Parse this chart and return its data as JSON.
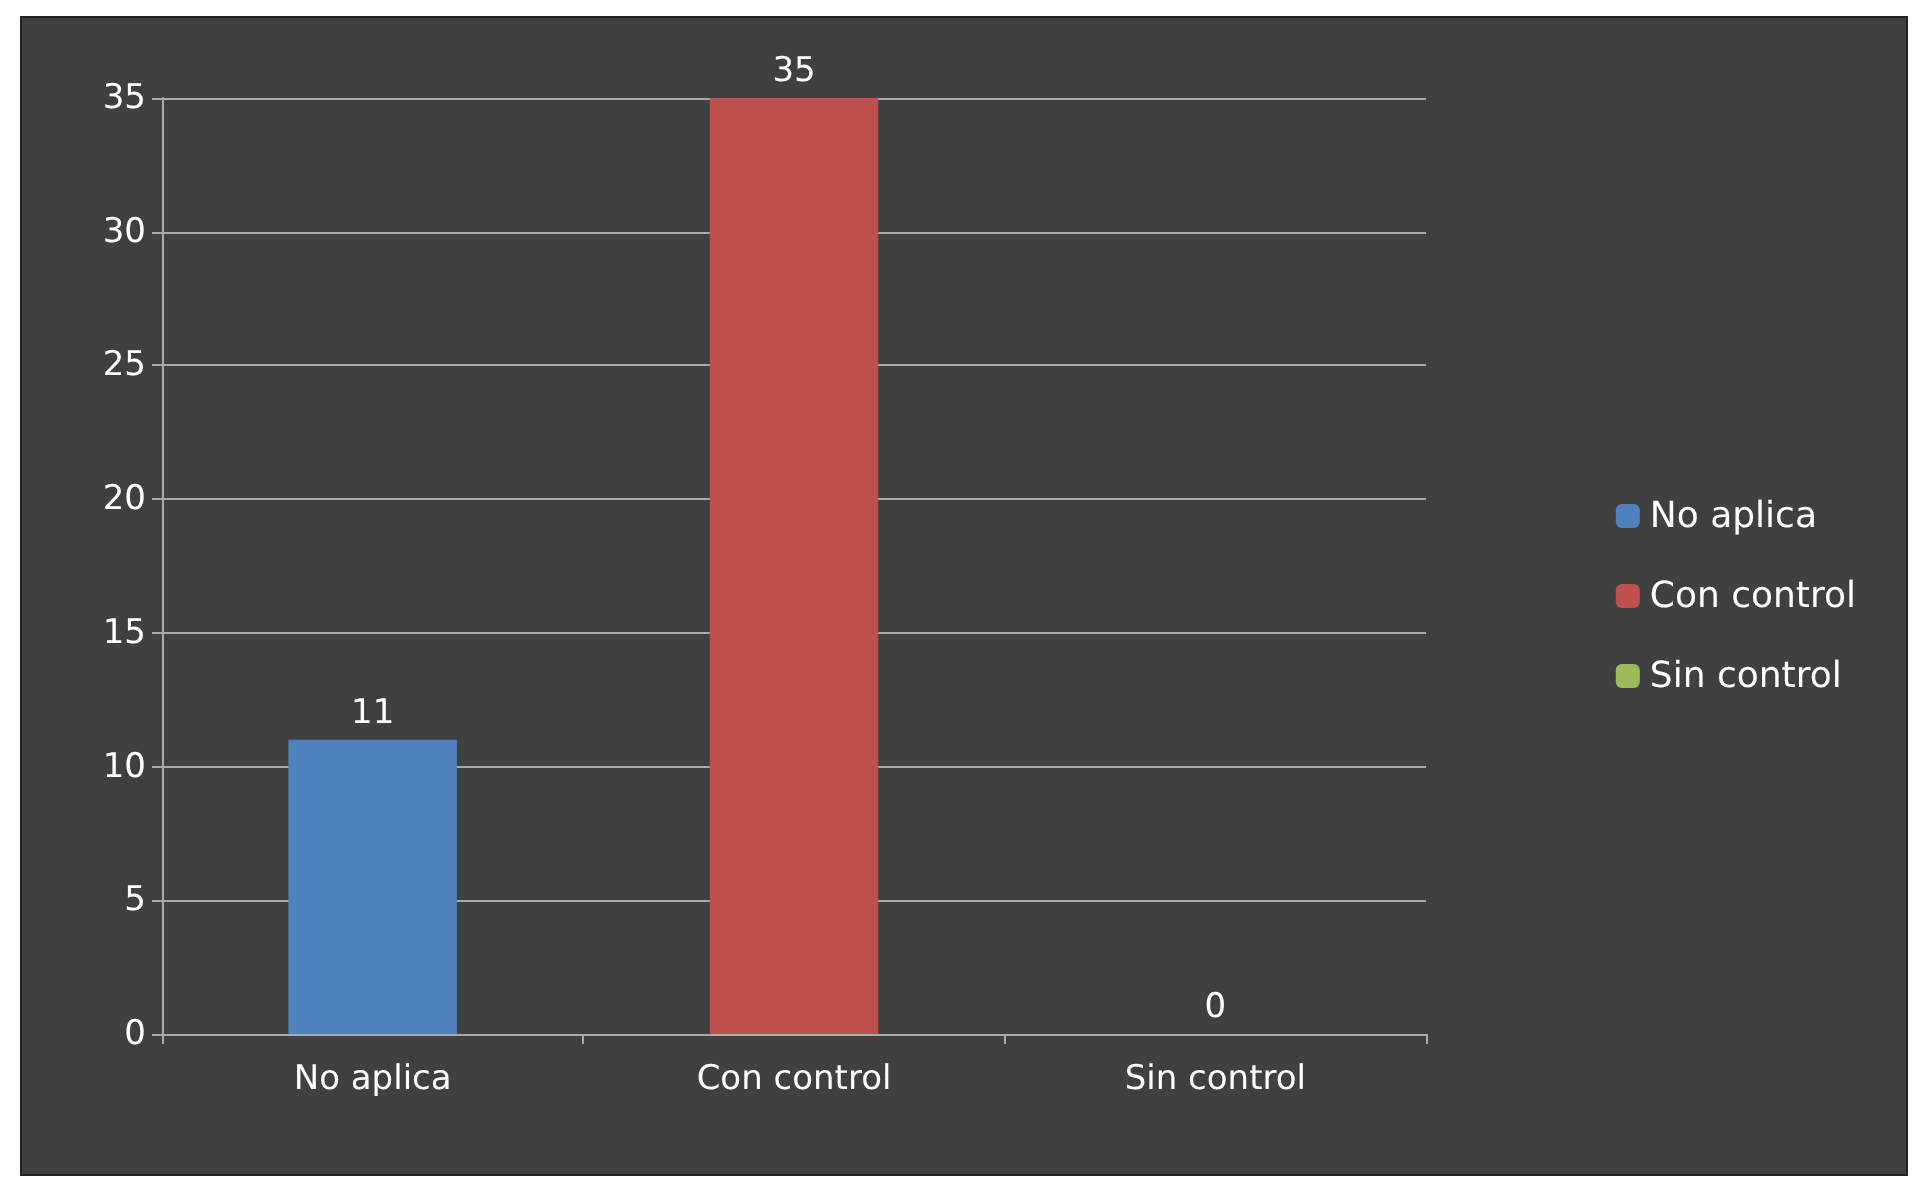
{
  "chart_data": {
    "type": "bar",
    "categories": [
      "No aplica",
      "Con control",
      "Sin control"
    ],
    "series": [
      {
        "name": "No aplica",
        "color": "#4f81bd",
        "values": [
          11,
          null,
          null
        ]
      },
      {
        "name": "Con control",
        "color": "#c0504d",
        "values": [
          null,
          35,
          null
        ]
      },
      {
        "name": "Sin control",
        "color": "#9bbb59",
        "values": [
          null,
          null,
          0
        ]
      }
    ],
    "ylim": [
      0,
      35
    ],
    "yticks": [
      0,
      5,
      10,
      15,
      20,
      25,
      30,
      35
    ],
    "grid": "y",
    "legend": "right",
    "data_labels": true
  }
}
